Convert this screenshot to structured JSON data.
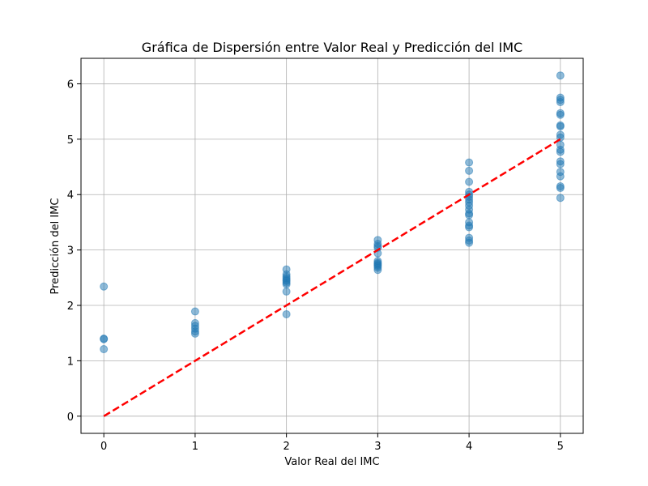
{
  "chart_data": {
    "type": "scatter",
    "title": "Gráfica de Dispersión entre Valor Real y Predicción del IMC",
    "xlabel": "Valor Real del IMC",
    "ylabel": "Predicción del IMC",
    "xlim": [
      -0.25,
      5.25
    ],
    "ylim": [
      -0.31,
      6.46
    ],
    "xticks": [
      0,
      1,
      2,
      3,
      4,
      5
    ],
    "yticks": [
      0,
      1,
      2,
      3,
      4,
      5,
      6
    ],
    "grid": true,
    "point_color": "#1f77b4",
    "line_color": "#ff0000",
    "reference_line": {
      "x": [
        0,
        5
      ],
      "y": [
        0,
        5
      ],
      "style": "dashed"
    },
    "series": [
      {
        "x": [
          0,
          0,
          0,
          0,
          1,
          1,
          1,
          1,
          1,
          1,
          2,
          2,
          2,
          2,
          2,
          2,
          2,
          2,
          2,
          2,
          3,
          3,
          3,
          3,
          3,
          3,
          3,
          3,
          3,
          3,
          3,
          3,
          4,
          4,
          4,
          4,
          4,
          4,
          4,
          4,
          4,
          4,
          4,
          4,
          4,
          4,
          4,
          4,
          4,
          4,
          5,
          5,
          5,
          5,
          5,
          5,
          5,
          5,
          5,
          5,
          5,
          5,
          5,
          5,
          5,
          5,
          5,
          5,
          5,
          5
        ],
        "y": [
          2.34,
          1.4,
          1.39,
          1.21,
          1.89,
          1.68,
          1.63,
          1.58,
          1.53,
          1.49,
          2.65,
          2.56,
          2.52,
          2.49,
          2.46,
          2.44,
          2.41,
          2.38,
          2.25,
          1.84,
          3.18,
          3.11,
          3.07,
          3.04,
          2.94,
          2.8,
          2.77,
          2.75,
          2.73,
          2.71,
          2.68,
          2.64,
          4.58,
          4.43,
          4.23,
          4.05,
          4.0,
          3.96,
          3.91,
          3.86,
          3.8,
          3.73,
          3.66,
          3.63,
          3.5,
          3.44,
          3.41,
          3.22,
          3.17,
          3.13,
          6.15,
          5.75,
          5.71,
          5.67,
          5.47,
          5.44,
          5.25,
          5.23,
          5.08,
          5.03,
          4.9,
          4.81,
          4.77,
          4.6,
          4.55,
          4.41,
          4.33,
          4.15,
          4.12,
          3.94
        ]
      }
    ]
  }
}
